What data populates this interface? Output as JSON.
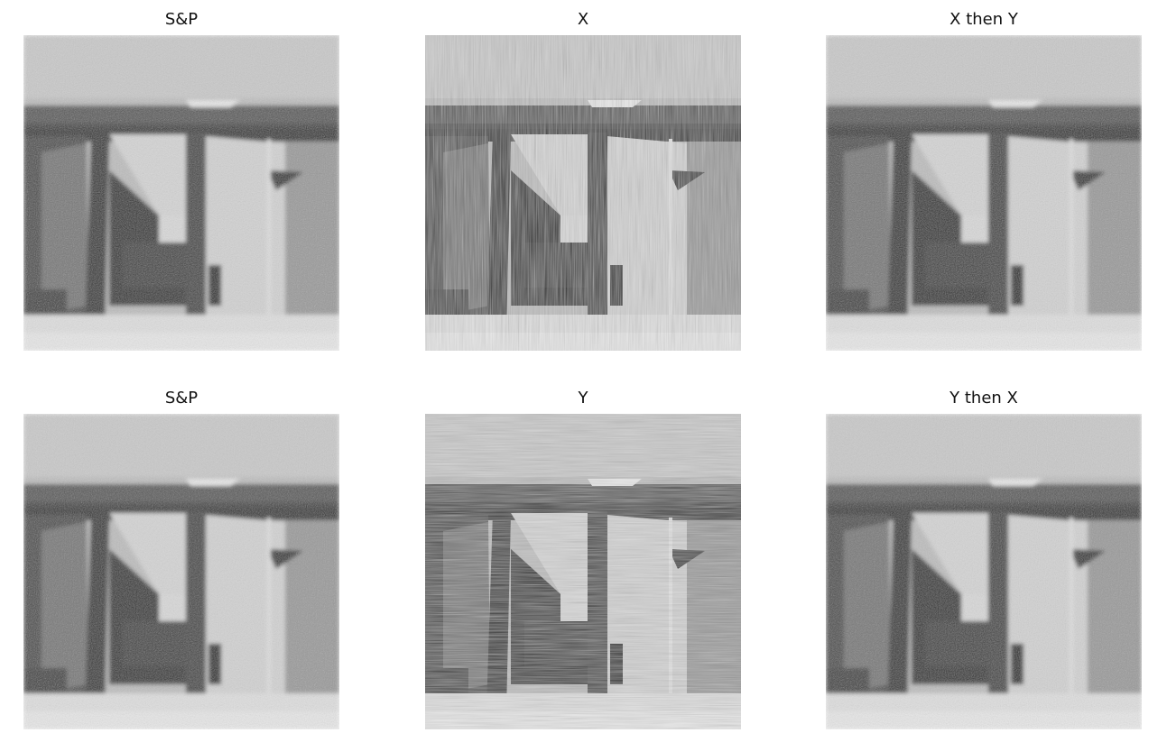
{
  "figure": {
    "panels": [
      {
        "title": "S&P",
        "noise": "blur"
      },
      {
        "title": "X",
        "noise": "vertical-streaks"
      },
      {
        "title": "X then Y",
        "noise": "blur"
      },
      {
        "title": "S&P",
        "noise": "blur"
      },
      {
        "title": "Y",
        "noise": "horizontal-streaks"
      },
      {
        "title": "Y then X",
        "noise": "blur"
      }
    ]
  }
}
